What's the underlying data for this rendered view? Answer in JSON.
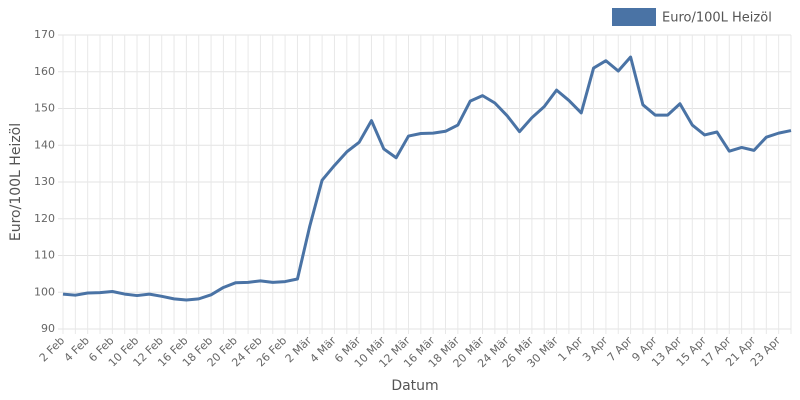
{
  "chart_data": {
    "type": "line",
    "legend": "top-right",
    "y_label": "Euro/100L Heizöl",
    "x_label": "Datum",
    "categories": [
      "2 Feb",
      null,
      "4 Feb",
      null,
      "6 Feb",
      null,
      "10 Feb",
      null,
      "12 Feb",
      null,
      "16 Feb",
      null,
      "18 Feb",
      null,
      "20 Feb",
      null,
      "24 Feb",
      null,
      "26 Feb",
      null,
      "2 Mär",
      null,
      "4 Mär",
      null,
      "6 Mär",
      null,
      "10 Mär",
      null,
      "12 Mär",
      null,
      "16 Mär",
      null,
      "18 Mär",
      null,
      "20 Mär",
      null,
      "24 Mär",
      null,
      "26 Mär",
      null,
      "30 Mär",
      null,
      "1 Apr",
      null,
      "3 Apr",
      null,
      "7 Apr",
      null,
      "9 Apr",
      null,
      "13 Apr",
      null,
      "15 Apr",
      null,
      "17 Apr",
      null,
      "21 Apr",
      null,
      "23 Apr",
      null
    ],
    "series": [
      {
        "name": "Euro/100L Heizöl",
        "color": "#4a73a5",
        "values": [
          99.5,
          99.2,
          99.8,
          99.9,
          100.2,
          99.5,
          99.1,
          99.5,
          98.9,
          98.2,
          97.9,
          98.2,
          99.3,
          101.3,
          102.6,
          102.7,
          103.1,
          102.7,
          102.9,
          103.6,
          118,
          130.5,
          134.5,
          138.2,
          140.8,
          146.7,
          139,
          136.6,
          142.5,
          143.2,
          143.3,
          143.8,
          145.5,
          152,
          153.5,
          151.5,
          148,
          143.7,
          147.5,
          150.5,
          155,
          152.2,
          148.8,
          161,
          163,
          160.2,
          164,
          151,
          148.2,
          148.2,
          151.3,
          145.5,
          142.8,
          143.6,
          138.4,
          139.4,
          138.6,
          142.2,
          143.3,
          144
        ]
      }
    ],
    "ylim": [
      90,
      170
    ],
    "yticks": [
      90,
      100,
      110,
      120,
      130,
      140,
      150,
      160,
      170
    ],
    "grid": true
  }
}
